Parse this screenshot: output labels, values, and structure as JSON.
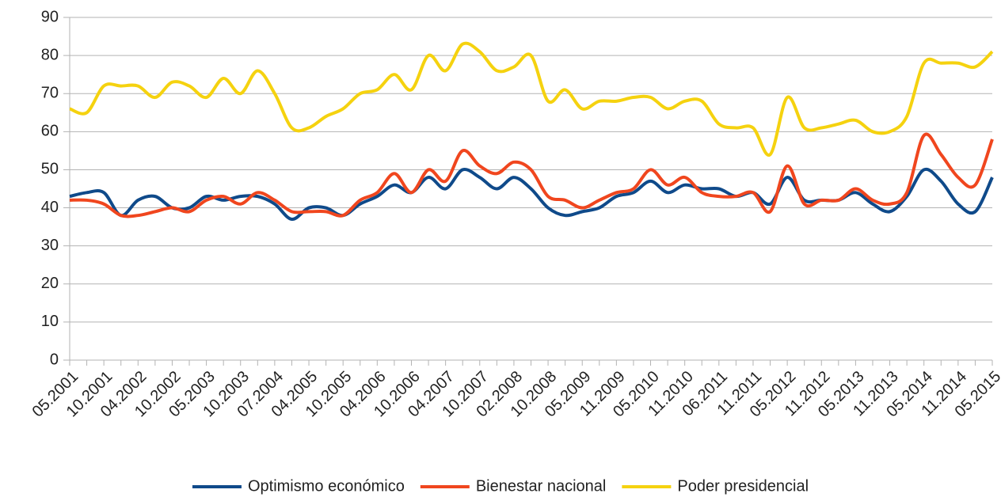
{
  "chart_data": {
    "type": "line",
    "categories": [
      "05.2001",
      null,
      "10.2001",
      null,
      "04.2002",
      null,
      "10.2002",
      null,
      "05.2003",
      null,
      "10.2003",
      null,
      "07.2004",
      null,
      "04.2005",
      null,
      "10.2005",
      null,
      "04.2006",
      null,
      "10.2006",
      null,
      "04.2007",
      null,
      "10.2007",
      null,
      "02.2008",
      null,
      "10.2008",
      null,
      "05.2009",
      null,
      "11.2009",
      null,
      "05.2010",
      null,
      "11.2010",
      null,
      "06.2011",
      null,
      "11.2011",
      null,
      "05.2012",
      null,
      "11.2012",
      null,
      "05.2013",
      null,
      "11.2013",
      null,
      "05.2014",
      null,
      "11.2014",
      null,
      "05.2015"
    ],
    "series": [
      {
        "name": "Optimismo económico",
        "color": "#0f4a8a",
        "values": [
          43,
          44,
          44,
          38,
          42,
          43,
          40,
          40,
          43,
          42,
          43,
          43,
          41,
          37,
          40,
          40,
          38,
          41,
          43,
          46,
          44,
          48,
          45,
          50,
          48,
          45,
          48,
          45,
          40,
          38,
          39,
          40,
          43,
          44,
          47,
          44,
          46,
          45,
          45,
          43,
          44,
          41,
          48,
          42,
          42,
          42,
          44,
          41,
          39,
          43,
          50,
          47,
          41,
          39,
          48
        ]
      },
      {
        "name": "Bienestar nacional",
        "color": "#f0461e",
        "values": [
          42,
          42,
          41,
          38,
          38,
          39,
          40,
          39,
          42,
          43,
          41,
          44,
          42,
          39,
          39,
          39,
          38,
          42,
          44,
          49,
          44,
          50,
          47,
          55,
          51,
          49,
          52,
          50,
          43,
          42,
          40,
          42,
          44,
          45,
          50,
          46,
          48,
          44,
          43,
          43,
          44,
          39,
          51,
          41,
          42,
          42,
          45,
          42,
          41,
          44,
          59,
          54,
          48,
          46,
          58
        ]
      },
      {
        "name": "Poder presidencial",
        "color": "#f5d20f",
        "values": [
          66,
          65,
          72,
          72,
          72,
          69,
          73,
          72,
          69,
          74,
          70,
          76,
          70,
          61,
          61,
          64,
          66,
          70,
          71,
          75,
          71,
          80,
          76,
          83,
          81,
          76,
          77,
          80,
          68,
          71,
          66,
          68,
          68,
          69,
          69,
          66,
          68,
          68,
          62,
          61,
          61,
          54,
          69,
          61,
          61,
          62,
          63,
          60,
          60,
          64,
          78,
          78,
          78,
          77,
          81
        ]
      }
    ],
    "ylim": [
      0,
      90
    ],
    "yticks": [
      0,
      10,
      20,
      30,
      40,
      50,
      60,
      70,
      80,
      90
    ],
    "grid": true,
    "legend": "bottom"
  }
}
